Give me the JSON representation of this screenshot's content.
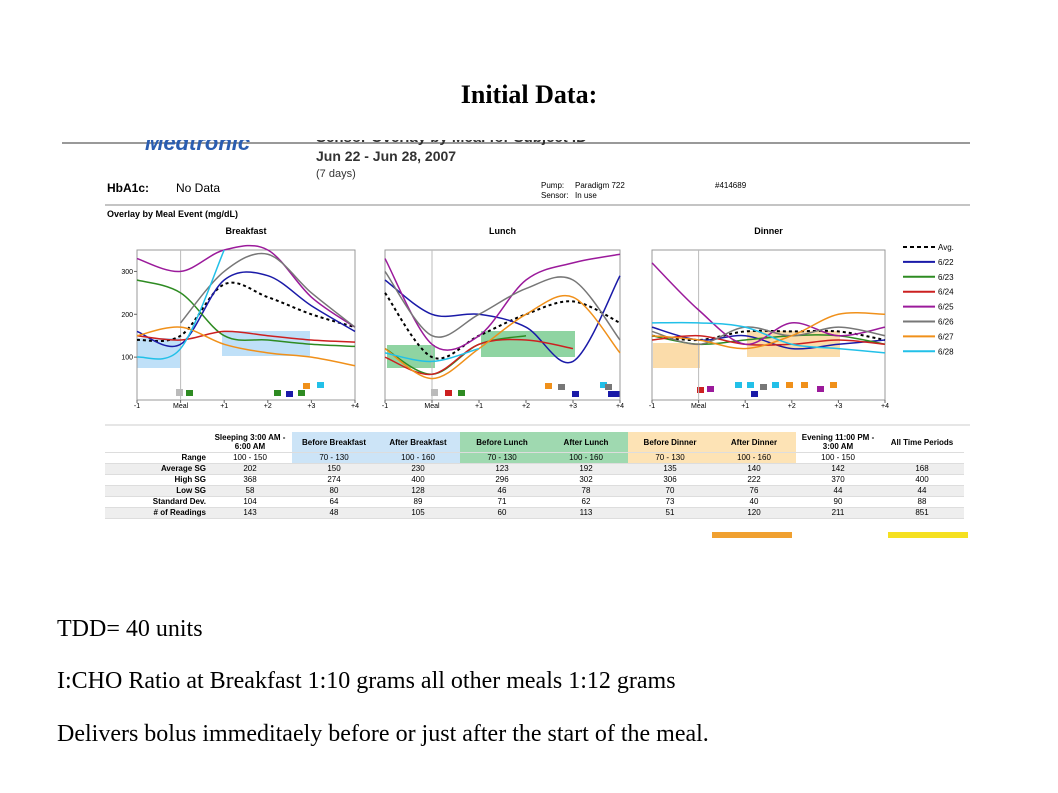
{
  "title": "Initial Data:",
  "report": {
    "logo": "Medtronic",
    "heading": "Sensor Overlay by Meal for Subject ID",
    "date_range": "Jun 22 - Jun 28, 2007",
    "days": "(7 days)",
    "hba1c_label": "HbA1c:",
    "hba1c_value": "No Data",
    "pump_label": "Pump:",
    "pump_value": "Paradigm 722",
    "serial": "#414689",
    "sensor_label": "Sensor:",
    "sensor_value": "In use",
    "overlay_title": "Overlay by Meal Event (mg/dL)"
  },
  "legend": [
    {
      "name": "Avg.",
      "color": "#000000",
      "dashed": true
    },
    {
      "name": "6/22",
      "color": "#1a1aa8"
    },
    {
      "name": "6/23",
      "color": "#2e8b22"
    },
    {
      "name": "6/24",
      "color": "#cc2020"
    },
    {
      "name": "6/25",
      "color": "#9b1a9b"
    },
    {
      "name": "6/26",
      "color": "#777777"
    },
    {
      "name": "6/27",
      "color": "#f0901a"
    },
    {
      "name": "6/28",
      "color": "#22c0e8"
    }
  ],
  "chart_data": [
    {
      "type": "line",
      "title": "Breakfast",
      "x": [
        -1,
        0,
        1,
        2,
        3,
        4
      ],
      "xlim": [
        -1,
        4
      ],
      "ylim": [
        0,
        350
      ],
      "xticks": [
        -1,
        {
          "value": 0,
          "label": "Meal"
        },
        {
          "value": 1,
          "label": "+1"
        },
        {
          "value": 2,
          "label": "+2"
        },
        {
          "value": 3,
          "label": "+3"
        },
        {
          "value": 4,
          "label": "+4"
        }
      ],
      "yticks": [
        100,
        200,
        300
      ],
      "series": [
        {
          "values": [
            140,
            150,
            270,
            240,
            200,
            170
          ]
        },
        {
          "values": [
            160,
            130,
            280,
            290,
            220,
            160
          ]
        },
        {
          "values": [
            280,
            250,
            150,
            140,
            130,
            125
          ]
        },
        {
          "values": [
            150,
            140,
            160,
            150,
            140,
            135
          ]
        },
        {
          "values": [
            330,
            300,
            350,
            350,
            240,
            170
          ]
        },
        {
          "values": [
            null,
            180,
            300,
            340,
            250,
            170
          ]
        },
        {
          "values": [
            150,
            170,
            130,
            110,
            100,
            80
          ]
        },
        {
          "values": [
            100,
            120,
            350,
            null,
            null,
            null
          ]
        }
      ]
    },
    {
      "type": "line",
      "title": "Lunch",
      "x": [
        -1,
        0,
        1,
        2,
        3,
        4
      ],
      "xlim": [
        -1,
        4
      ],
      "ylim": [
        0,
        350
      ],
      "xticks": [
        -1,
        {
          "value": 0,
          "label": "Meal"
        },
        {
          "value": 1,
          "label": "+1"
        },
        {
          "value": 2,
          "label": "+2"
        },
        {
          "value": 3,
          "label": "+3"
        },
        {
          "value": 4,
          "label": "+4"
        }
      ],
      "series": [
        {
          "values": [
            250,
            100,
            150,
            200,
            230,
            180
          ]
        },
        {
          "values": [
            280,
            200,
            200,
            170,
            90,
            290
          ]
        },
        {
          "values": [
            120,
            60,
            130,
            150,
            null,
            null
          ]
        },
        {
          "values": [
            100,
            60,
            130,
            140,
            120,
            null
          ]
        },
        {
          "values": [
            330,
            130,
            150,
            280,
            320,
            340
          ]
        },
        {
          "values": [
            300,
            150,
            200,
            260,
            280,
            140
          ]
        },
        {
          "values": [
            120,
            50,
            120,
            200,
            240,
            110
          ]
        },
        {
          "values": [
            110,
            90,
            120,
            null,
            null,
            null
          ]
        }
      ]
    },
    {
      "type": "line",
      "title": "Dinner",
      "x": [
        -1,
        0,
        1,
        2,
        3,
        4
      ],
      "xlim": [
        -1,
        4
      ],
      "ylim": [
        0,
        350
      ],
      "xticks": [
        -1,
        {
          "value": 0,
          "label": "Meal"
        },
        {
          "value": 1,
          "label": "+1"
        },
        {
          "value": 2,
          "label": "+2"
        },
        {
          "value": 3,
          "label": "+3"
        },
        {
          "value": 4,
          "label": "+4"
        }
      ],
      "series": [
        {
          "values": [
            150,
            140,
            160,
            160,
            160,
            140
          ]
        },
        {
          "values": [
            170,
            140,
            150,
            120,
            130,
            140
          ]
        },
        {
          "values": [
            150,
            130,
            140,
            150,
            150,
            130
          ]
        },
        {
          "values": [
            140,
            150,
            130,
            130,
            140,
            130
          ]
        },
        {
          "values": [
            320,
            210,
            130,
            180,
            150,
            170
          ]
        },
        {
          "values": [
            160,
            130,
            170,
            150,
            170,
            150
          ]
        },
        {
          "values": [
            150,
            140,
            120,
            150,
            200,
            200
          ]
        },
        {
          "values": [
            180,
            180,
            170,
            130,
            120,
            110
          ]
        }
      ]
    }
  ],
  "table": {
    "headers": [
      "Sleeping 3:00 AM - 6:00 AM",
      "Before Breakfast",
      "After Breakfast",
      "Before Lunch",
      "After Lunch",
      "Before Dinner",
      "After Dinner",
      "Evening 11:00 PM - 3:00 AM",
      "All Time Periods"
    ],
    "rows": [
      [
        "Range",
        "100 - 150",
        "70 - 130",
        "100 - 160",
        "70 - 130",
        "100 - 160",
        "70 - 130",
        "100 - 160",
        "100 - 150"
      ],
      [
        "Average SG",
        202,
        150,
        230,
        123,
        192,
        135,
        140,
        142,
        168
      ],
      [
        "High SG",
        368,
        274,
        400,
        296,
        302,
        306,
        222,
        370,
        400
      ],
      [
        "Low SG",
        58,
        80,
        128,
        46,
        78,
        70,
        76,
        44,
        44
      ],
      [
        "Standard Dev.",
        104,
        64,
        89,
        71,
        62,
        73,
        40,
        90,
        88
      ],
      [
        "# of Readings",
        143,
        48,
        105,
        60,
        113,
        51,
        120,
        211,
        851
      ]
    ]
  },
  "notes": [
    "TDD= 40 units",
    "I:CHO Ratio at Breakfast 1:10 grams all other meals 1:12 grams",
    "Delivers bolus immeditaely before or just after the start of the meal."
  ]
}
